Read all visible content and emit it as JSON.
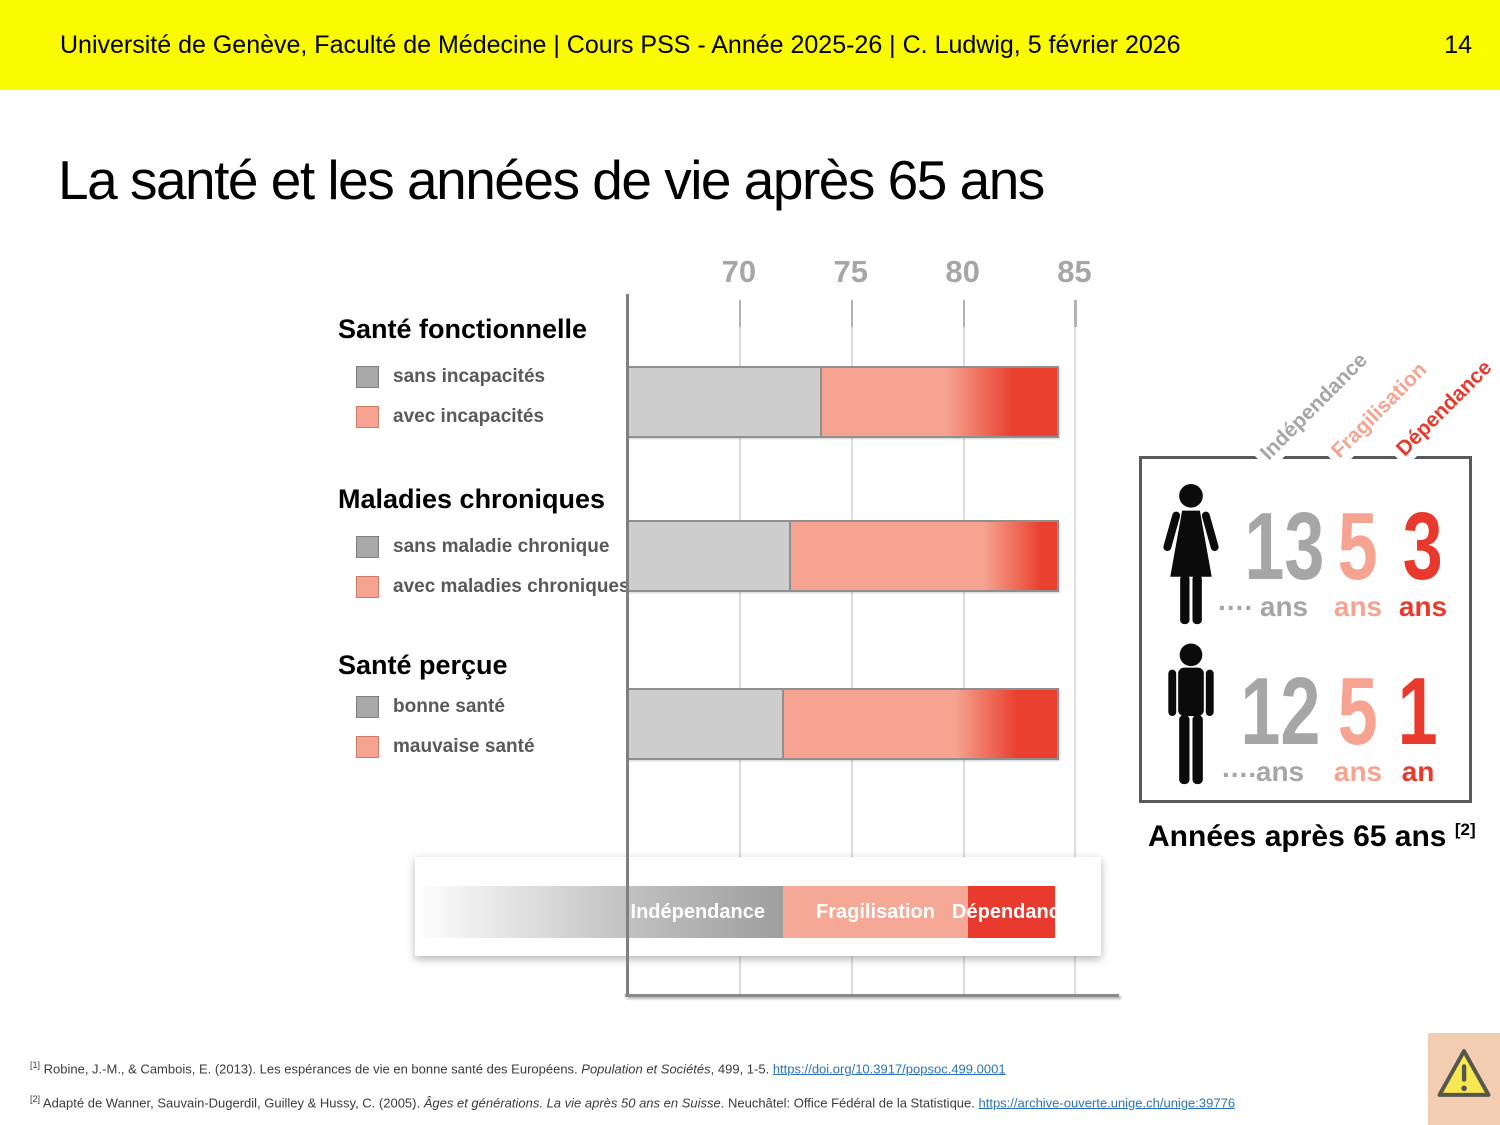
{
  "header": {
    "text": "Université de Genève, Faculté de Médecine  |  Cours PSS - Année 2025-26  |  C. Ludwig, 5 février 2026",
    "page_number": "14",
    "background": "#FBFB00"
  },
  "title": "La santé et les années de vie après 65 ans",
  "chart_data": {
    "type": "bar",
    "orientation": "horizontal",
    "unit": "âge (années)",
    "axis": {
      "min": 65,
      "max": 86.9,
      "ticks": [
        70,
        75,
        80,
        85
      ]
    },
    "groups": [
      {
        "category": "Santé fonctionnelle",
        "segments": [
          {
            "label": "sans incapacités",
            "from": 65,
            "to": 73.7,
            "color": "gray"
          },
          {
            "label": "avec incapacités",
            "from": 73.7,
            "to": 84.3,
            "color": "salmon-to-red"
          }
        ],
        "red_blend_start": 79.3,
        "red_full": 82.3
      },
      {
        "category": "Maladies chroniques",
        "segments": [
          {
            "label": "sans maladie chronique",
            "from": 65,
            "to": 72.3,
            "color": "gray"
          },
          {
            "label": "avec maladies chroniques",
            "from": 72.3,
            "to": 84.3,
            "color": "salmon-to-red"
          }
        ],
        "red_blend_start": 81.0,
        "red_full": 83.6
      },
      {
        "category": "Santé perçue",
        "segments": [
          {
            "label": "bonne santé",
            "from": 65,
            "to": 72.0,
            "color": "gray"
          },
          {
            "label": "mauvaise santé",
            "from": 72.0,
            "to": 84.3,
            "color": "salmon-to-red"
          }
        ],
        "red_blend_start": 79.7,
        "red_full": 82.5
      }
    ],
    "phase_legend": [
      {
        "label": "Indépendance",
        "color": "#9E9E9E"
      },
      {
        "label": "Fragilisation",
        "color": "#F6A896"
      },
      {
        "label": "Dépendance",
        "color": "#E83A2E"
      }
    ]
  },
  "infographic": {
    "column_labels": [
      {
        "label": "Indépendance",
        "color": "#A6A6A6"
      },
      {
        "label": "Fragilisation",
        "color": "#F6A391"
      },
      {
        "label": "Dépendance",
        "color": "#E8392C"
      }
    ],
    "rows": [
      {
        "icon": "woman",
        "dots": "....",
        "values": [
          {
            "number": "13",
            "unit": "ans",
            "color": "#A6A6A6"
          },
          {
            "number": "5",
            "unit": "ans",
            "color": "#F6A391"
          },
          {
            "number": "3",
            "unit": "ans",
            "color": "#E8392C"
          }
        ]
      },
      {
        "icon": "man",
        "dots": "....",
        "values": [
          {
            "number": "12",
            "unit": "ans",
            "color": "#A6A6A6"
          },
          {
            "number": "5",
            "unit": "ans",
            "color": "#F6A391"
          },
          {
            "number": "1",
            "unit": "an",
            "color": "#E8392C"
          }
        ]
      }
    ],
    "caption": "Années après 65 ans",
    "caption_ref": "[2]"
  },
  "footnotes": [
    {
      "marker": "[1]",
      "text_before": " Robine, J.-M., & Cambois, E. (2013). Les espérances de vie en bonne santé des Européens. ",
      "italic": "Population et Sociétés",
      "text_after": ", 499, 1-5. ",
      "link": "https://doi.org/10.3917/popsoc.499.0001"
    },
    {
      "marker": "[2]",
      "text_before": " Adapté de Wanner, Sauvain-Dugerdil, Guilley  & Hussy, C. (2005). ",
      "italic": "Âges et générations. La vie après 50 ans en Suisse",
      "text_after": ". Neuchâtel: Office Fédéral de la Statistique. ",
      "link": "https://archive-ouverte.unige.ch/unige:39776"
    }
  ],
  "colors": {
    "header_bg": "#FBFB00",
    "bar_gray": "#CDCDCD",
    "salmon": "#F6A391",
    "red": "#E9402F",
    "gray_text": "#A6A6A6",
    "link_blue": "#2D74B5",
    "box_border": "#595959",
    "warn_panel_bg": "#F2CDB2",
    "warn_triangle": "#F7E751"
  }
}
